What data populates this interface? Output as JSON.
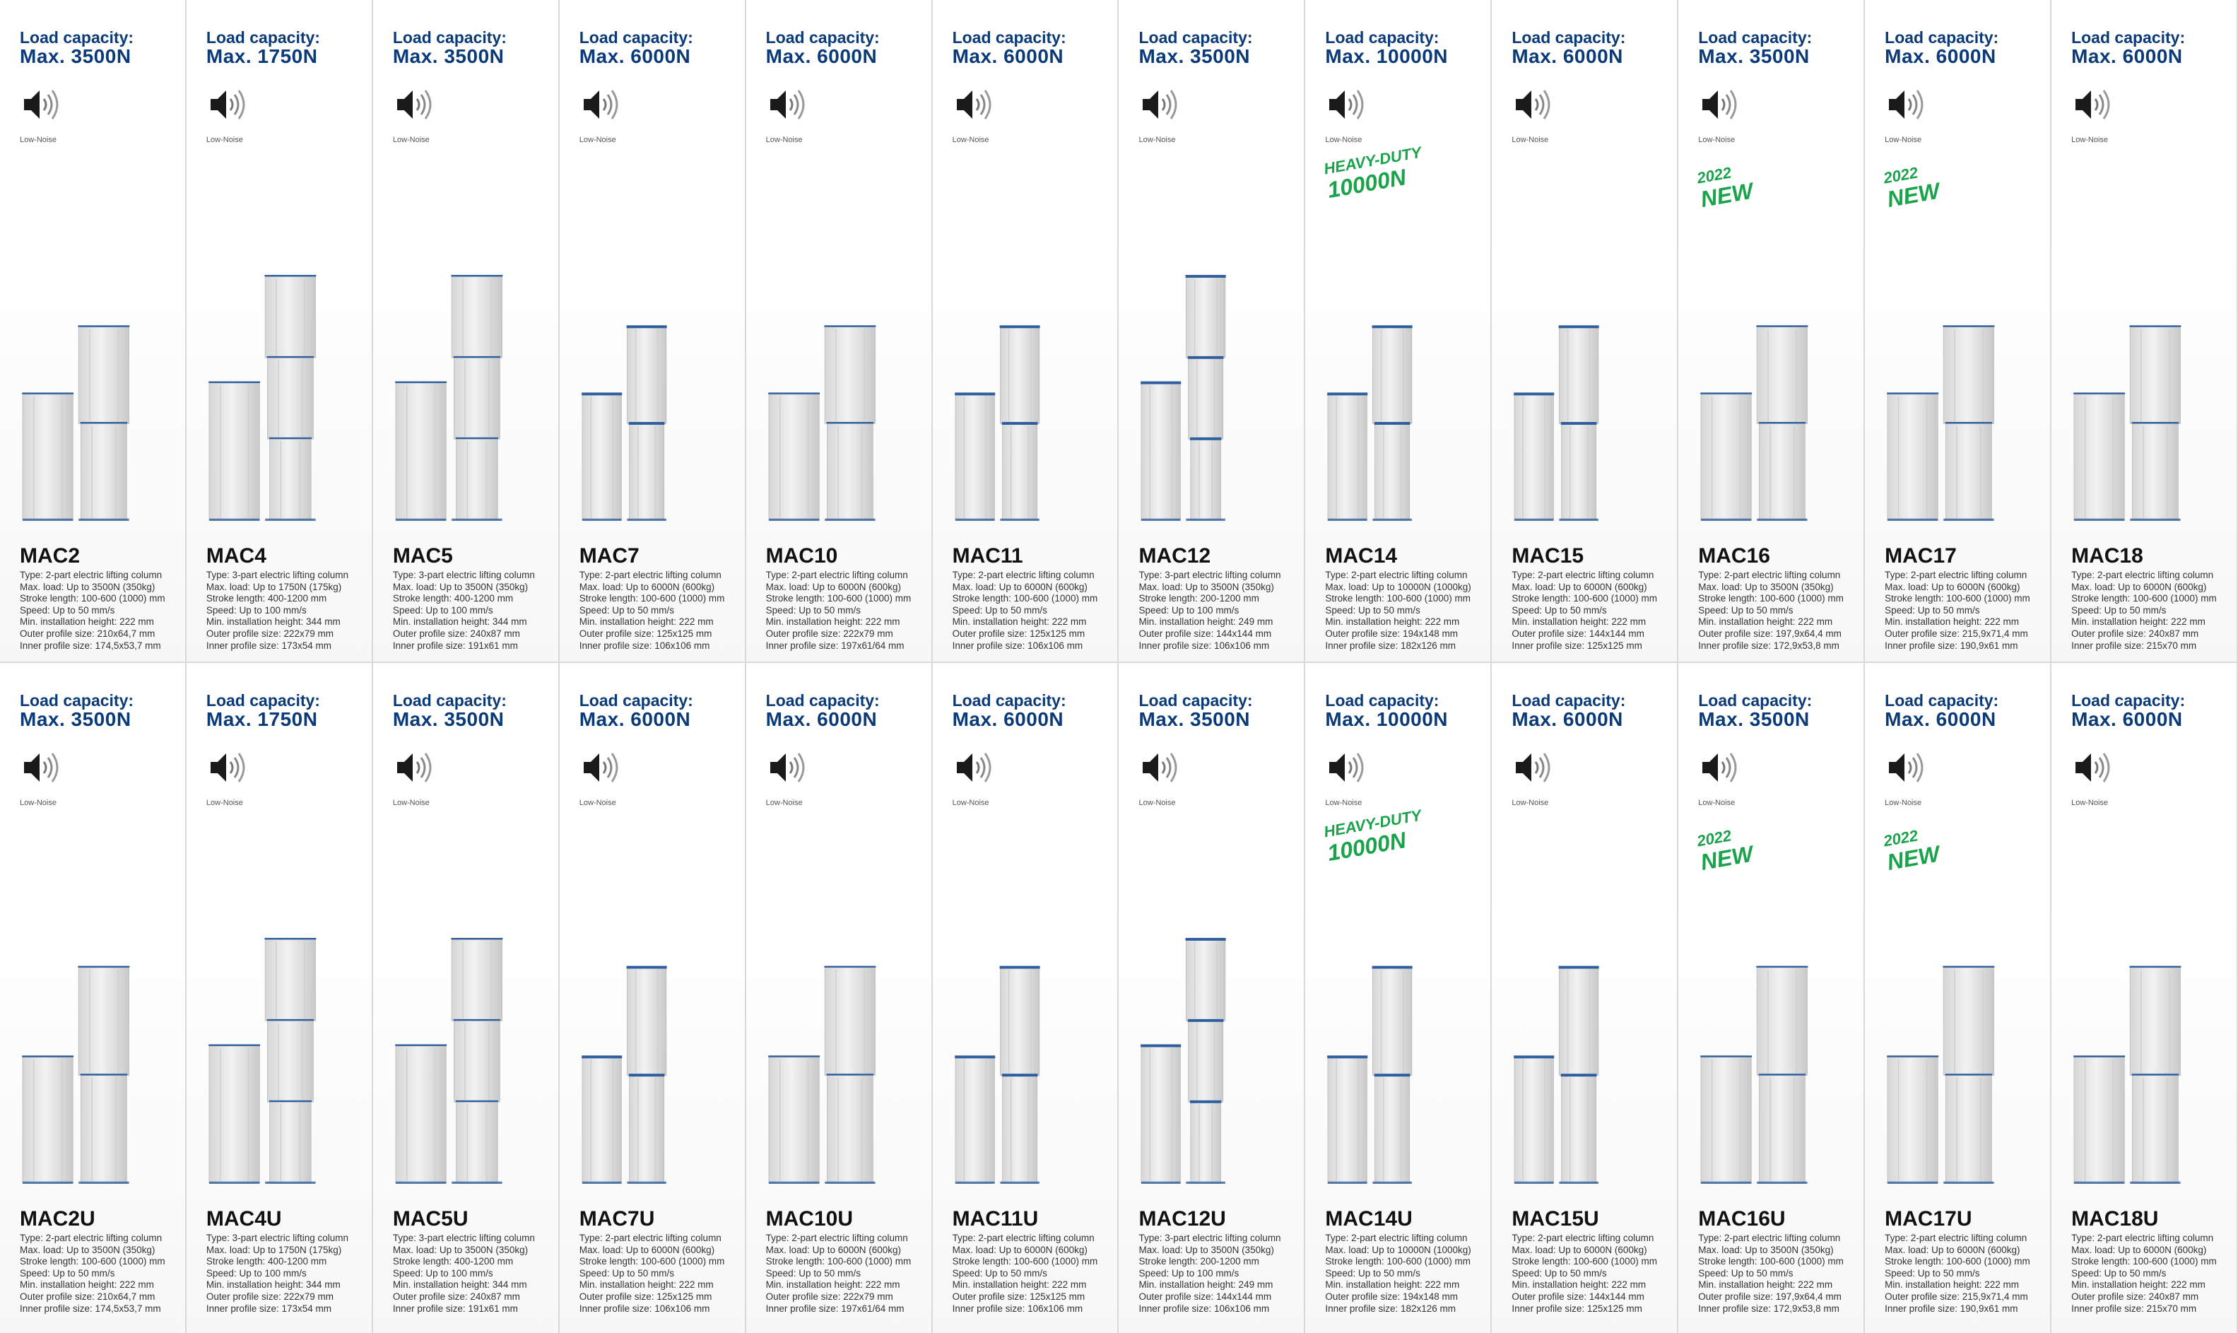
{
  "colors": {
    "accent": "#0a3a78",
    "new_badge": "#1aa34a",
    "column_top": "#2e5e9e"
  },
  "common": {
    "load_label": "Load capacity:",
    "low_noise": "Low-Noise",
    "speaker_icon": "speaker-low-noise-icon",
    "new_badge": {
      "year": "2022",
      "word": "NEW"
    },
    "hd_badge": {
      "line1": "HEAVY-DUTY",
      "line2": "10000N"
    }
  },
  "products": [
    {
      "model": "MAC2",
      "cap": "Max. 3500N",
      "badge": "",
      "specs": [
        "Type: 2-part electric lifting column",
        "Max. load: Up to 3500N (350kg)",
        "Stroke length: 100-600 (1000) mm",
        "Speed: Up to 50 mm/s",
        "Min. installation height: 222 mm",
        "Outer profile size: 210x64,7 mm",
        "Inner profile size: 174,5x53,7 mm"
      ]
    },
    {
      "model": "MAC4",
      "cap": "Max. 1750N",
      "badge": "",
      "specs": [
        "Type: 3-part electric lifting column",
        "Max. load: Up to 1750N (175kg)",
        "Stroke length: 400-1200 mm",
        "Speed: Up to 100 mm/s",
        "Min. installation height: 344 mm",
        "Outer profile size: 222x79 mm",
        "Inner profile size: 173x54 mm"
      ]
    },
    {
      "model": "MAC5",
      "cap": "Max. 3500N",
      "badge": "",
      "specs": [
        "Type: 3-part electric lifting column",
        "Max. load: Up to 3500N (350kg)",
        "Stroke length: 400-1200 mm",
        "Speed: Up to 100 mm/s",
        "Min. installation height: 344 mm",
        "Outer profile size: 240x87 mm",
        "Inner profile size: 191x61 mm"
      ]
    },
    {
      "model": "MAC7",
      "cap": "Max. 6000N",
      "badge": "",
      "specs": [
        "Type: 2-part electric lifting column",
        "Max. load: Up to 6000N (600kg)",
        "Stroke length: 100-600 (1000) mm",
        "Speed: Up to 50 mm/s",
        "Min. installation height: 222 mm",
        "Outer profile size: 125x125 mm",
        "Inner profile size: 106x106 mm"
      ]
    },
    {
      "model": "MAC10",
      "cap": "Max. 6000N",
      "badge": "",
      "specs": [
        "Type: 2-part electric lifting column",
        "Max. load: Up to 6000N (600kg)",
        "Stroke length: 100-600 (1000) mm",
        "Speed: Up to 50 mm/s",
        "Min. installation height: 222 mm",
        "Outer profile size: 222x79 mm",
        "Inner profile size: 197x61/64 mm"
      ]
    },
    {
      "model": "MAC11",
      "cap": "Max. 6000N",
      "badge": "",
      "specs": [
        "Type: 2-part electric lifting column",
        "Max. load: Up to 6000N (600kg)",
        "Stroke length: 100-600 (1000) mm",
        "Speed: Up to 50 mm/s",
        "Min. installation height: 222 mm",
        "Outer profile size: 125x125 mm",
        "Inner profile size: 106x106 mm"
      ]
    },
    {
      "model": "MAC12",
      "cap": "Max. 3500N",
      "badge": "",
      "specs": [
        "Type: 3-part electric lifting column",
        "Max. load: Up to 3500N (350kg)",
        "Stroke length: 200-1200 mm",
        "Speed: Up to 100 mm/s",
        "Min. installation height: 249 mm",
        "Outer profile size: 144x144 mm",
        "Inner profile size: 106x106 mm"
      ]
    },
    {
      "model": "MAC14",
      "cap": "Max. 10000N",
      "badge": "hd",
      "specs": [
        "Type: 2-part electric lifting column",
        "Max. load: Up to 10000N (1000kg)",
        "Stroke length: 100-600 (1000) mm",
        "Speed: Up to 50 mm/s",
        "Min. installation height: 222 mm",
        "Outer profile size: 194x148 mm",
        "Inner profile size: 182x126 mm"
      ]
    },
    {
      "model": "MAC15",
      "cap": "Max. 6000N",
      "badge": "",
      "specs": [
        "Type: 2-part electric lifting column",
        "Max. load: Up to 6000N (600kg)",
        "Stroke length: 100-600 (1000) mm",
        "Speed: Up to 50 mm/s",
        "Min. installation height: 222 mm",
        "Outer profile size: 144x144 mm",
        "Inner profile size: 125x125 mm"
      ]
    },
    {
      "model": "MAC16",
      "cap": "Max. 3500N",
      "badge": "new",
      "specs": [
        "Type: 2-part electric lifting column",
        "Max. load: Up to 3500N (350kg)",
        "Stroke length: 100-600 (1000) mm",
        "Speed: Up to 50 mm/s",
        "Min. installation height: 222 mm",
        "Outer profile size: 197,9x64,4 mm",
        "Inner profile size: 172,9x53,8 mm"
      ]
    },
    {
      "model": "MAC17",
      "cap": "Max. 6000N",
      "badge": "new",
      "specs": [
        "Type: 2-part electric lifting column",
        "Max. load: Up to 6000N (600kg)",
        "Stroke length: 100-600 (1000) mm",
        "Speed: Up to 50 mm/s",
        "Min. installation height: 222 mm",
        "Outer profile size: 215,9x71,4 mm",
        "Inner profile size: 190,9x61 mm"
      ]
    },
    {
      "model": "MAC18",
      "cap": "Max. 6000N",
      "badge": "",
      "specs": [
        "Type: 2-part electric lifting column",
        "Max. load: Up to 6000N (600kg)",
        "Stroke length: 100-600 (1000) mm",
        "Speed: Up to 50 mm/s",
        "Min. installation height: 222 mm",
        "Outer profile size: 240x87 mm",
        "Inner profile size: 215x70 mm"
      ]
    },
    {
      "model": "MAC2U",
      "cap": "Max. 3500N",
      "badge": "",
      "specs": [
        "Type: 2-part electric lifting column",
        "Max. load: Up to 3500N (350kg)",
        "Stroke length: 100-600 (1000) mm",
        "Speed: Up to 50 mm/s",
        "Min. installation height: 222 mm",
        "Outer profile size: 210x64,7 mm",
        "Inner profile size: 174,5x53,7 mm"
      ]
    },
    {
      "model": "MAC4U",
      "cap": "Max. 1750N",
      "badge": "",
      "specs": [
        "Type: 3-part electric lifting column",
        "Max. load: Up to 1750N (175kg)",
        "Stroke length: 400-1200 mm",
        "Speed: Up to 100 mm/s",
        "Min. installation height: 344 mm",
        "Outer profile size: 222x79 mm",
        "Inner profile size: 173x54 mm"
      ]
    },
    {
      "model": "MAC5U",
      "cap": "Max. 3500N",
      "badge": "",
      "specs": [
        "Type: 3-part electric lifting column",
        "Max. load: Up to 3500N (350kg)",
        "Stroke length: 400-1200 mm",
        "Speed: Up to 100 mm/s",
        "Min. installation height: 344 mm",
        "Outer profile size: 240x87 mm",
        "Inner profile size: 191x61 mm"
      ]
    },
    {
      "model": "MAC7U",
      "cap": "Max. 6000N",
      "badge": "",
      "specs": [
        "Type: 2-part electric lifting column",
        "Max. load: Up to 6000N (600kg)",
        "Stroke length: 100-600 (1000) mm",
        "Speed: Up to 50 mm/s",
        "Min. installation height: 222 mm",
        "Outer profile size: 125x125 mm",
        "Inner profile size: 106x106 mm"
      ]
    },
    {
      "model": "MAC10U",
      "cap": "Max. 6000N",
      "badge": "",
      "specs": [
        "Type: 2-part electric lifting column",
        "Max. load: Up to 6000N (600kg)",
        "Stroke length: 100-600 (1000) mm",
        "Speed: Up to 50 mm/s",
        "Min. installation height: 222 mm",
        "Outer profile size: 222x79 mm",
        "Inner profile size: 197x61/64 mm"
      ]
    },
    {
      "model": "MAC11U",
      "cap": "Max. 6000N",
      "badge": "",
      "specs": [
        "Type: 2-part electric lifting column",
        "Max. load: Up to 6000N (600kg)",
        "Stroke length: 100-600 (1000) mm",
        "Speed: Up to 50 mm/s",
        "Min. installation height: 222 mm",
        "Outer profile size: 125x125 mm",
        "Inner profile size: 106x106 mm"
      ]
    },
    {
      "model": "MAC12U",
      "cap": "Max. 3500N",
      "badge": "",
      "specs": [
        "Type: 3-part electric lifting column",
        "Max. load: Up to 3500N (350kg)",
        "Stroke length: 200-1200 mm",
        "Speed: Up to 100 mm/s",
        "Min. installation height: 249 mm",
        "Outer profile size: 144x144 mm",
        "Inner profile size: 106x106 mm"
      ]
    },
    {
      "model": "MAC14U",
      "cap": "Max. 10000N",
      "badge": "hd",
      "specs": [
        "Type: 2-part electric lifting column",
        "Max. load: Up to 10000N (1000kg)",
        "Stroke length: 100-600 (1000) mm",
        "Speed: Up to 50 mm/s",
        "Min. installation height: 222 mm",
        "Outer profile size: 194x148 mm",
        "Inner profile size: 182x126 mm"
      ]
    },
    {
      "model": "MAC15U",
      "cap": "Max. 6000N",
      "badge": "",
      "specs": [
        "Type: 2-part electric lifting column",
        "Max. load: Up to 6000N (600kg)",
        "Stroke length: 100-600 (1000) mm",
        "Speed: Up to 50 mm/s",
        "Min. installation height: 222 mm",
        "Outer profile size: 144x144 mm",
        "Inner profile size: 125x125 mm"
      ]
    },
    {
      "model": "MAC16U",
      "cap": "Max. 3500N",
      "badge": "new",
      "specs": [
        "Type: 2-part electric lifting column",
        "Max. load: Up to 3500N (350kg)",
        "Stroke length: 100-600 (1000) mm",
        "Speed: Up to 50 mm/s",
        "Min. installation height: 222 mm",
        "Outer profile size: 197,9x64,4 mm",
        "Inner profile size: 172,9x53,8 mm"
      ]
    },
    {
      "model": "MAC17U",
      "cap": "Max. 6000N",
      "badge": "new",
      "specs": [
        "Type: 2-part electric lifting column",
        "Max. load: Up to 6000N (600kg)",
        "Stroke length: 100-600 (1000) mm",
        "Speed: Up to 50 mm/s",
        "Min. installation height: 222 mm",
        "Outer profile size: 215,9x71,4 mm",
        "Inner profile size: 190,9x61 mm"
      ]
    },
    {
      "model": "MAC18U",
      "cap": "Max. 6000N",
      "badge": "",
      "specs": [
        "Type: 2-part electric lifting column",
        "Max. load: Up to 6000N (600kg)",
        "Stroke length: 100-600 (1000) mm",
        "Speed: Up to 50 mm/s",
        "Min. installation height: 222 mm",
        "Outer profile size: 240x87 mm",
        "Inner profile size: 215x70 mm"
      ]
    }
  ]
}
